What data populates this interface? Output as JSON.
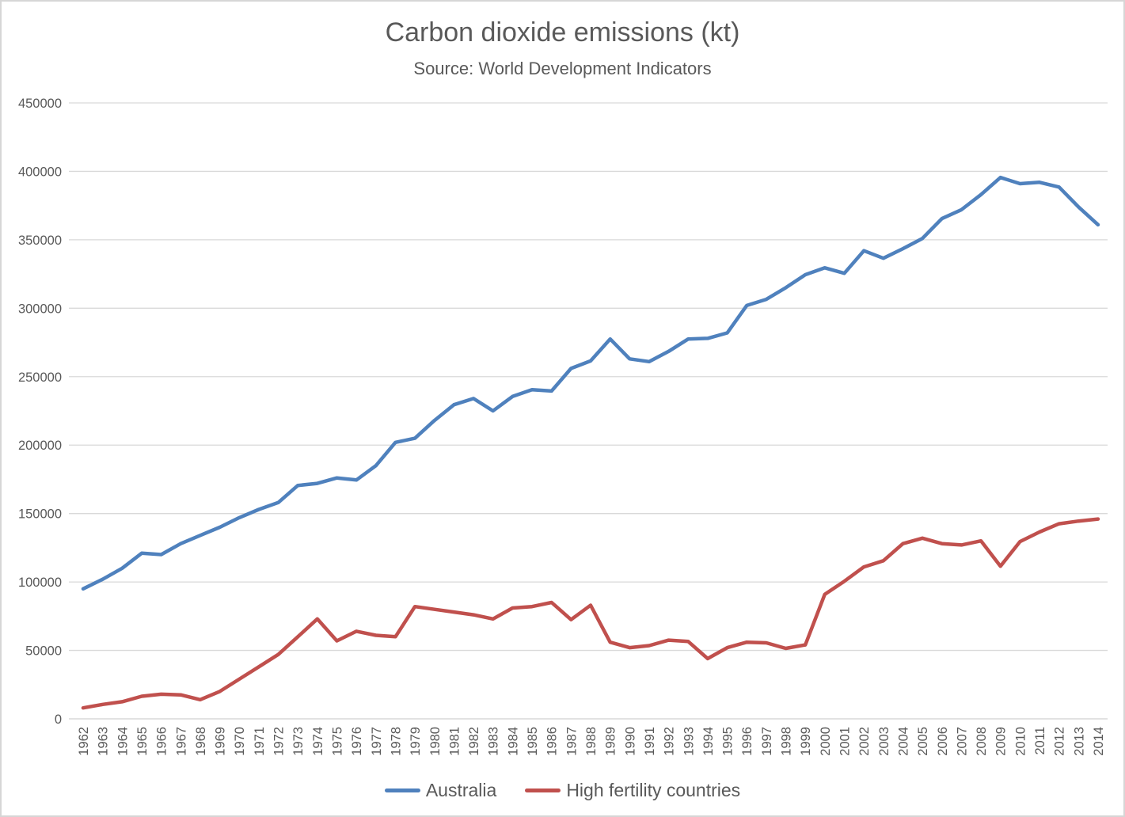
{
  "title": "Carbon dioxide emissions (kt)",
  "subtitle": "Source: World Development Indicators",
  "colors": {
    "australia_line": "#4F81BD",
    "high_fertility_line": "#C0504D",
    "gridline": "#D9D9D9",
    "axis_line": "#D0D0D0",
    "text": "#595959"
  },
  "legend": [
    {
      "label": "Australia",
      "series_index": 0
    },
    {
      "label": "High fertility countries",
      "series_index": 1
    }
  ],
  "chart_data": {
    "type": "line",
    "title": "Carbon dioxide emissions (kt)",
    "subtitle": "Source: World Development Indicators",
    "xlabel": "",
    "ylabel": "",
    "x": [
      1962,
      1963,
      1964,
      1965,
      1966,
      1967,
      1968,
      1969,
      1970,
      1971,
      1972,
      1973,
      1974,
      1975,
      1976,
      1977,
      1978,
      1979,
      1980,
      1981,
      1982,
      1983,
      1984,
      1985,
      1986,
      1987,
      1988,
      1989,
      1990,
      1991,
      1992,
      1993,
      1994,
      1995,
      1996,
      1997,
      1998,
      1999,
      2000,
      2001,
      2002,
      2003,
      2004,
      2005,
      2006,
      2007,
      2008,
      2009,
      2010,
      2011,
      2012,
      2013,
      2014
    ],
    "series": [
      {
        "name": "Australia",
        "color": "#4F81BD",
        "values": [
          95000,
          102000,
          110000,
          121000,
          120000,
          128000,
          134000,
          140000,
          147000,
          153000,
          158000,
          170500,
          172000,
          176000,
          174500,
          185000,
          202000,
          205000,
          218000,
          229500,
          234000,
          225000,
          235500,
          240500,
          239500,
          256000,
          261500,
          277500,
          263000,
          261000,
          268500,
          277500,
          278000,
          282000,
          302000,
          306500,
          315000,
          324500,
          329500,
          325500,
          342000,
          336500,
          343500,
          351000,
          365500,
          372000,
          383000,
          395500,
          391000,
          392000,
          388500,
          374000,
          361000
        ]
      },
      {
        "name": "High fertility countries",
        "color": "#C0504D",
        "values": [
          8000,
          10500,
          12500,
          16500,
          18000,
          17500,
          14000,
          20000,
          29000,
          38000,
          47000,
          60000,
          73000,
          57000,
          64000,
          61000,
          60000,
          82000,
          80000,
          78000,
          76000,
          73000,
          81000,
          82000,
          85000,
          72500,
          83000,
          56000,
          52000,
          53500,
          57500,
          56500,
          44000,
          52000,
          56000,
          55500,
          51500,
          54000,
          91000,
          100500,
          111000,
          115500,
          128000,
          132000,
          128000,
          127000,
          130000,
          111500,
          129500,
          136500,
          142500,
          144500,
          146000
        ]
      }
    ],
    "ylim": [
      0,
      450000
    ],
    "ytick_step": 50000,
    "ytick_labels": [
      "0",
      "50000",
      "100000",
      "150000",
      "200000",
      "250000",
      "300000",
      "350000",
      "400000",
      "450000"
    ],
    "grid": true,
    "legend_position": "bottom"
  }
}
